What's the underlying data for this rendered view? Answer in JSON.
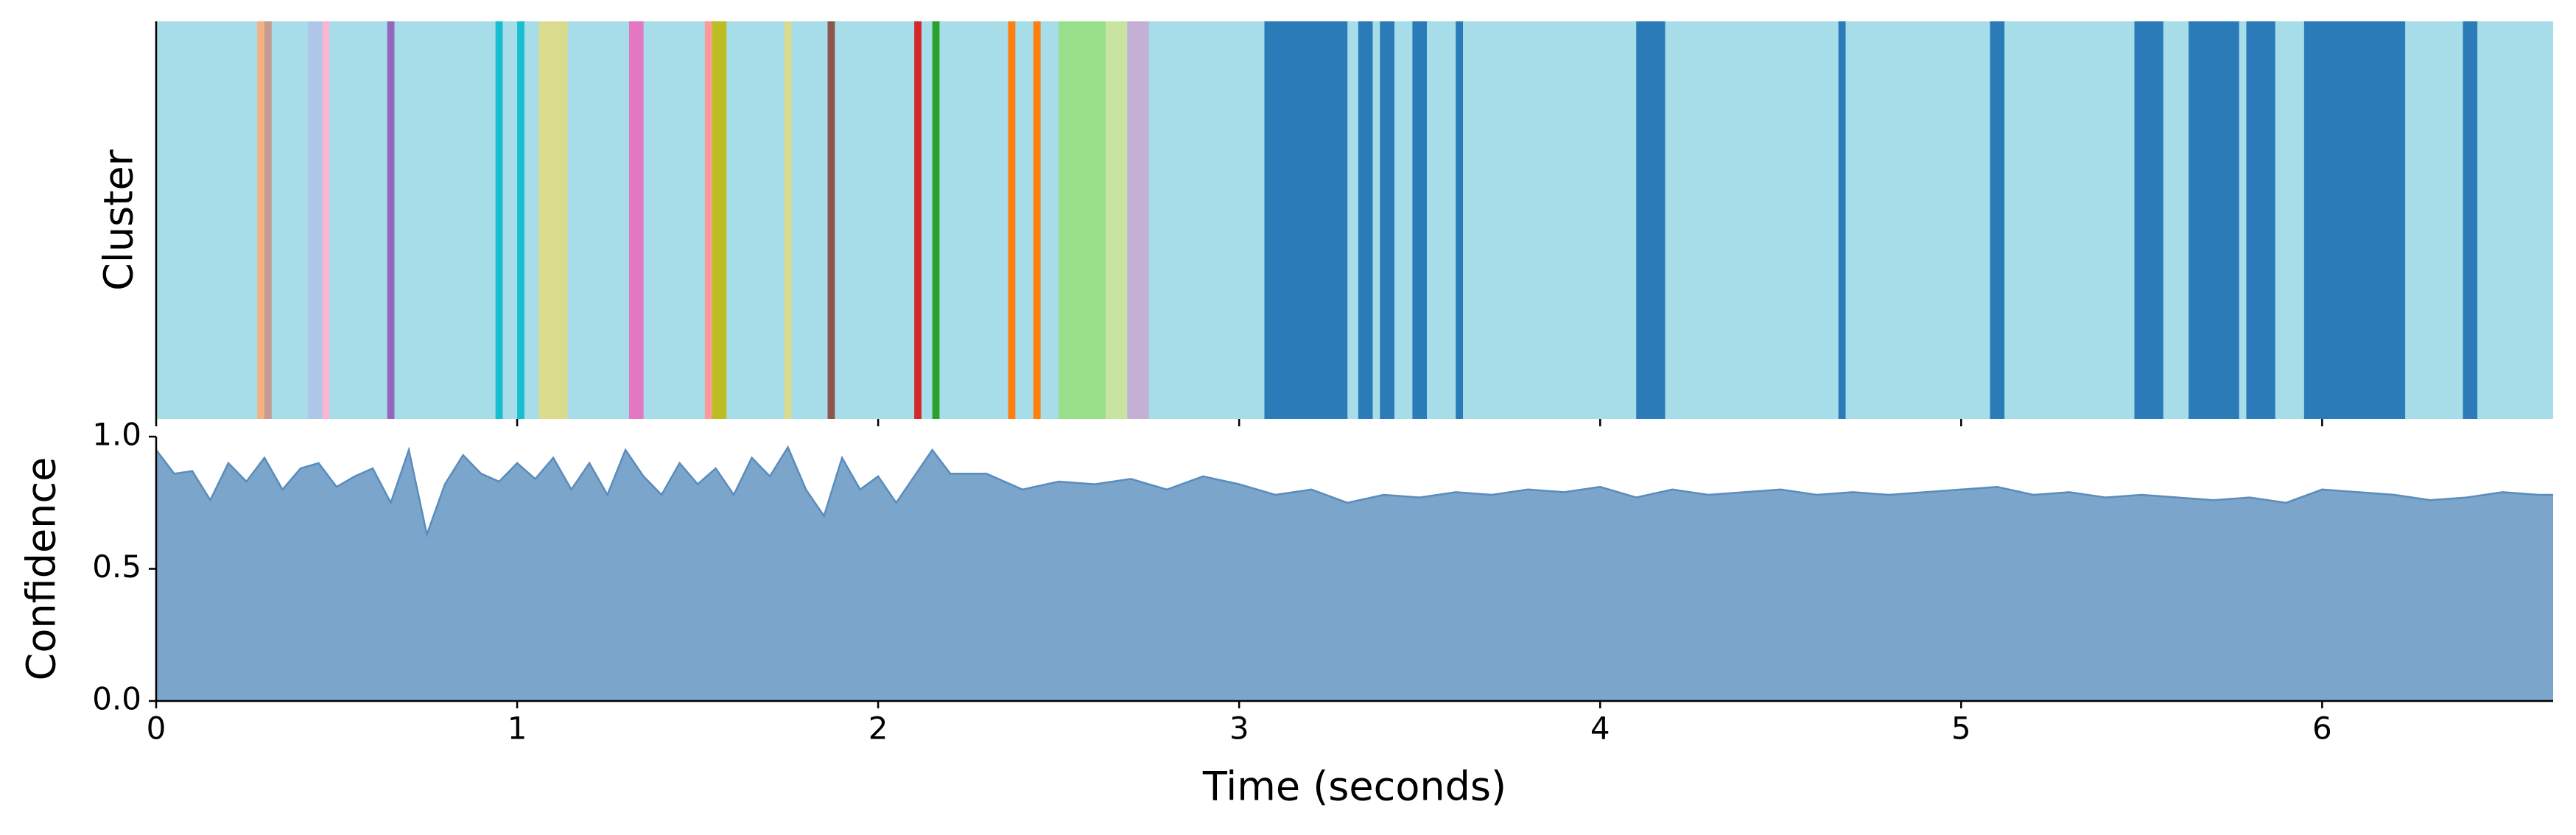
{
  "chart_data": [
    {
      "type": "bands",
      "ylabel": "Cluster",
      "background": "#a6dde8",
      "xlim": [
        0,
        6.64
      ],
      "xticks": [
        0,
        1,
        2,
        3,
        4,
        5,
        6
      ],
      "bands": [
        {
          "start": 0.28,
          "end": 0.3,
          "color": "#f4b183"
        },
        {
          "start": 0.3,
          "end": 0.32,
          "color": "#c49c94"
        },
        {
          "start": 0.42,
          "end": 0.46,
          "color": "#aec7e8"
        },
        {
          "start": 0.46,
          "end": 0.48,
          "color": "#f7b6d2"
        },
        {
          "start": 0.64,
          "end": 0.66,
          "color": "#9467bd"
        },
        {
          "start": 0.94,
          "end": 0.96,
          "color": "#17becf"
        },
        {
          "start": 1.0,
          "end": 1.02,
          "color": "#17becf"
        },
        {
          "start": 1.06,
          "end": 1.14,
          "color": "#dbdb8d"
        },
        {
          "start": 1.31,
          "end": 1.35,
          "color": "#e377c2"
        },
        {
          "start": 1.52,
          "end": 1.54,
          "color": "#ff9896"
        },
        {
          "start": 1.54,
          "end": 1.58,
          "color": "#bcbd22"
        },
        {
          "start": 1.74,
          "end": 1.76,
          "color": "#dbdb8d"
        },
        {
          "start": 1.86,
          "end": 1.88,
          "color": "#8c564b"
        },
        {
          "start": 2.1,
          "end": 2.12,
          "color": "#d62728"
        },
        {
          "start": 2.15,
          "end": 2.17,
          "color": "#2ca02c"
        },
        {
          "start": 2.36,
          "end": 2.38,
          "color": "#ff7f0e"
        },
        {
          "start": 2.43,
          "end": 2.45,
          "color": "#ff7f0e"
        },
        {
          "start": 2.5,
          "end": 2.63,
          "color": "#98df8a"
        },
        {
          "start": 2.63,
          "end": 2.69,
          "color": "#c9e3a0"
        },
        {
          "start": 2.69,
          "end": 2.75,
          "color": "#c5b0d5"
        },
        {
          "start": 3.07,
          "end": 3.3,
          "color": "#2b7bb9"
        },
        {
          "start": 3.33,
          "end": 3.37,
          "color": "#2b7bb9"
        },
        {
          "start": 3.39,
          "end": 3.43,
          "color": "#2b7bb9"
        },
        {
          "start": 3.48,
          "end": 3.52,
          "color": "#2b7bb9"
        },
        {
          "start": 3.6,
          "end": 3.62,
          "color": "#2b7bb9"
        },
        {
          "start": 4.1,
          "end": 4.18,
          "color": "#2b7bb9"
        },
        {
          "start": 4.66,
          "end": 4.68,
          "color": "#2b7bb9"
        },
        {
          "start": 5.08,
          "end": 5.12,
          "color": "#2b7bb9"
        },
        {
          "start": 5.48,
          "end": 5.56,
          "color": "#2b7bb9"
        },
        {
          "start": 5.63,
          "end": 5.77,
          "color": "#2b7bb9"
        },
        {
          "start": 5.79,
          "end": 5.87,
          "color": "#2b7bb9"
        },
        {
          "start": 5.95,
          "end": 6.23,
          "color": "#2b7bb9"
        },
        {
          "start": 6.39,
          "end": 6.43,
          "color": "#2b7bb9"
        }
      ]
    },
    {
      "type": "area",
      "ylabel": "Confidence",
      "xlabel": "Time (seconds)",
      "color": "#7ba5ca",
      "line_color": "#5a8cbc",
      "xlim": [
        0,
        6.64
      ],
      "xticks": [
        0,
        1,
        2,
        3,
        4,
        5,
        6
      ],
      "ylim": [
        0,
        1
      ],
      "yticks": [
        {
          "value": 0,
          "label": "0.0"
        },
        {
          "value": 0.5,
          "label": "0.5"
        },
        {
          "value": 1,
          "label": "1.0"
        }
      ],
      "x": [
        0,
        0.05,
        0.1,
        0.15,
        0.2,
        0.25,
        0.3,
        0.35,
        0.4,
        0.45,
        0.5,
        0.55,
        0.6,
        0.65,
        0.7,
        0.75,
        0.8,
        0.85,
        0.9,
        0.95,
        1.0,
        1.05,
        1.1,
        1.15,
        1.2,
        1.25,
        1.3,
        1.35,
        1.4,
        1.45,
        1.5,
        1.55,
        1.6,
        1.65,
        1.7,
        1.75,
        1.8,
        1.85,
        1.9,
        1.95,
        2.0,
        2.05,
        2.1,
        2.15,
        2.2,
        2.3,
        2.4,
        2.5,
        2.6,
        2.7,
        2.8,
        2.9,
        3.0,
        3.1,
        3.2,
        3.3,
        3.4,
        3.5,
        3.6,
        3.7,
        3.8,
        3.9,
        4.0,
        4.1,
        4.2,
        4.3,
        4.4,
        4.5,
        4.6,
        4.7,
        4.8,
        4.9,
        5.0,
        5.1,
        5.2,
        5.3,
        5.4,
        5.5,
        5.6,
        5.7,
        5.8,
        5.9,
        6.0,
        6.1,
        6.2,
        6.3,
        6.4,
        6.5,
        6.6,
        6.64
      ],
      "values": [
        0.95,
        0.86,
        0.87,
        0.76,
        0.9,
        0.83,
        0.92,
        0.8,
        0.88,
        0.9,
        0.81,
        0.85,
        0.88,
        0.75,
        0.95,
        0.63,
        0.82,
        0.93,
        0.86,
        0.83,
        0.9,
        0.84,
        0.92,
        0.8,
        0.9,
        0.78,
        0.95,
        0.85,
        0.78,
        0.9,
        0.82,
        0.88,
        0.78,
        0.92,
        0.85,
        0.96,
        0.8,
        0.7,
        0.92,
        0.8,
        0.85,
        0.75,
        0.85,
        0.95,
        0.86,
        0.86,
        0.8,
        0.83,
        0.82,
        0.84,
        0.8,
        0.85,
        0.82,
        0.78,
        0.8,
        0.75,
        0.78,
        0.77,
        0.79,
        0.78,
        0.8,
        0.79,
        0.81,
        0.77,
        0.8,
        0.78,
        0.79,
        0.8,
        0.78,
        0.79,
        0.78,
        0.79,
        0.8,
        0.81,
        0.78,
        0.79,
        0.77,
        0.78,
        0.77,
        0.76,
        0.77,
        0.75,
        0.8,
        0.79,
        0.78,
        0.76,
        0.77,
        0.79,
        0.78,
        0.78
      ]
    }
  ]
}
